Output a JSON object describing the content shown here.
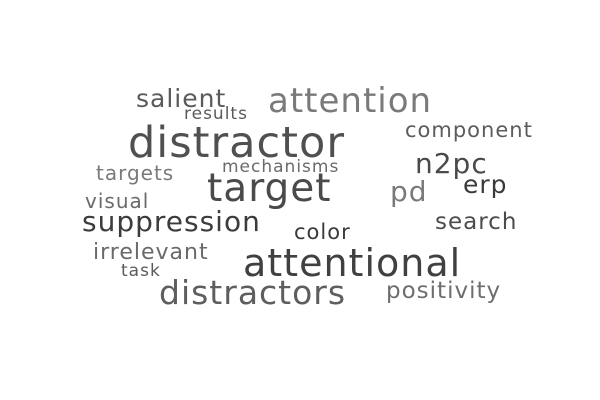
{
  "words": {
    "salient": {
      "text": "salient",
      "color": "#5a5a5a"
    },
    "attention": {
      "text": "attention",
      "color": "#7a7a7a"
    },
    "results": {
      "text": "results",
      "color": "#5a5a5a"
    },
    "distractor": {
      "text": "distractor",
      "color": "#505050"
    },
    "component": {
      "text": "component",
      "color": "#5c5c5c"
    },
    "n2pc": {
      "text": "n2pc",
      "color": "#4a4a4a"
    },
    "mechanisms": {
      "text": "mechanisms",
      "color": "#6a6a6a"
    },
    "targets": {
      "text": "targets",
      "color": "#7a7a7a"
    },
    "target": {
      "text": "target",
      "color": "#4a4a4a"
    },
    "erp": {
      "text": "erp",
      "color": "#3a3a3a"
    },
    "pd": {
      "text": "pd",
      "color": "#7a7a7a"
    },
    "visual": {
      "text": "visual",
      "color": "#6a6a6a"
    },
    "suppression": {
      "text": "suppression",
      "color": "#3c3c3c"
    },
    "search": {
      "text": "search",
      "color": "#4c4c4c"
    },
    "color": {
      "text": "color",
      "color": "#3a3a3a"
    },
    "irrelevant": {
      "text": "irrelevant",
      "color": "#6a6a6a"
    },
    "attentional": {
      "text": "attentional",
      "color": "#404040"
    },
    "task": {
      "text": "task",
      "color": "#5a5a5a"
    },
    "distractors": {
      "text": "distractors",
      "color": "#5e5e5e"
    },
    "positivity": {
      "text": "positivity",
      "color": "#6e6e6e"
    }
  }
}
